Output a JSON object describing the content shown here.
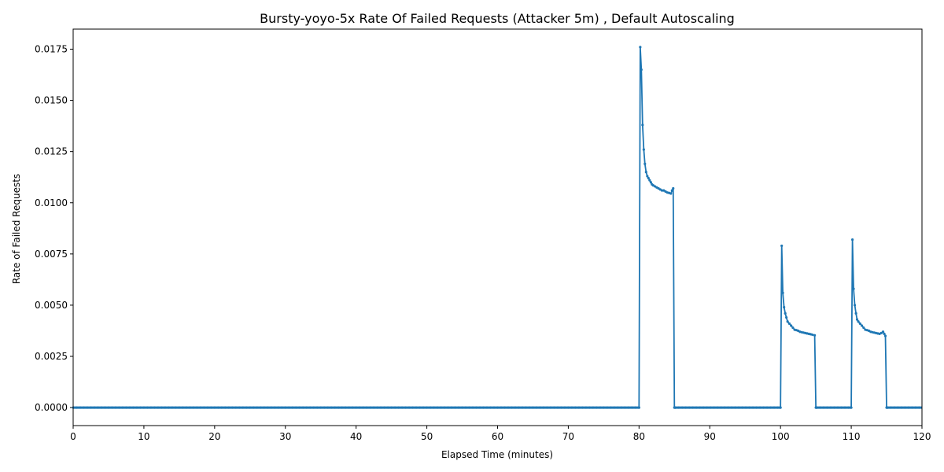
{
  "chart_data": {
    "type": "line",
    "title": "Bursty-yoyo-5x Rate Of Failed Requests (Attacker 5m) , Default Autoscaling",
    "xlabel": "Elapsed Time (minutes)",
    "ylabel": "Rate of Failed Requests",
    "xlim": [
      0,
      120
    ],
    "ylim": [
      -0.00088,
      0.01848
    ],
    "x_ticks": [
      0,
      10,
      20,
      30,
      40,
      50,
      60,
      70,
      80,
      90,
      100,
      110,
      120
    ],
    "x_tick_labels": [
      "0",
      "10",
      "20",
      "30",
      "40",
      "50",
      "60",
      "70",
      "80",
      "90",
      "100",
      "110",
      "120"
    ],
    "y_ticks": [
      0.0,
      0.0025,
      0.005,
      0.0075,
      0.01,
      0.0125,
      0.015,
      0.0175
    ],
    "y_tick_labels": [
      "0.0000",
      "0.0025",
      "0.0050",
      "0.0075",
      "0.0100",
      "0.0125",
      "0.0150",
      "0.0175"
    ],
    "grid": false,
    "legend": false,
    "series": [
      {
        "color": "#1f77b4",
        "marker": "dot",
        "zero_segments": [
          [
            0,
            80
          ],
          [
            85.1,
            100
          ],
          [
            105.1,
            110
          ],
          [
            115.1,
            120
          ]
        ],
        "x": [
          80.0,
          80.17,
          80.33,
          80.5,
          80.67,
          80.83,
          81.0,
          81.17,
          81.33,
          81.5,
          81.67,
          81.83,
          82.0,
          82.25,
          82.5,
          82.75,
          83.0,
          83.25,
          83.5,
          83.75,
          84.0,
          84.25,
          84.5,
          84.67,
          84.83,
          85.0,
          85.1,
          100.0,
          100.17,
          100.33,
          100.5,
          100.67,
          100.83,
          101.0,
          101.25,
          101.5,
          101.75,
          102.0,
          102.25,
          102.5,
          102.75,
          103.0,
          103.25,
          103.5,
          103.75,
          104.0,
          104.25,
          104.5,
          104.83,
          105.0,
          105.1,
          110.0,
          110.17,
          110.33,
          110.5,
          110.67,
          110.83,
          111.0,
          111.25,
          111.5,
          111.75,
          112.0,
          112.25,
          112.5,
          112.75,
          113.0,
          113.25,
          113.5,
          113.75,
          114.0,
          114.25,
          114.5,
          114.67,
          114.83,
          115.0,
          115.1
        ],
        "y": [
          0.0,
          0.0176,
          0.0165,
          0.0138,
          0.0126,
          0.0119,
          0.0115,
          0.0113,
          0.0112,
          0.0111,
          0.011,
          0.0109,
          0.01085,
          0.0108,
          0.01075,
          0.0107,
          0.01065,
          0.0106,
          0.0106,
          0.01055,
          0.0105,
          0.01048,
          0.01045,
          0.0106,
          0.0107,
          0.0,
          0.0,
          0.0,
          0.0079,
          0.0056,
          0.0049,
          0.0046,
          0.0044,
          0.0042,
          0.0041,
          0.004,
          0.0039,
          0.0038,
          0.00378,
          0.00375,
          0.0037,
          0.00368,
          0.00366,
          0.00364,
          0.00362,
          0.0036,
          0.00358,
          0.00356,
          0.00353,
          0.0,
          0.0,
          0.0,
          0.0082,
          0.0058,
          0.005,
          0.0046,
          0.0043,
          0.0042,
          0.0041,
          0.004,
          0.0039,
          0.0038,
          0.00378,
          0.00375,
          0.0037,
          0.00368,
          0.00366,
          0.00364,
          0.00362,
          0.0036,
          0.00364,
          0.0037,
          0.0036,
          0.0035,
          0.0,
          0.0
        ]
      }
    ]
  }
}
